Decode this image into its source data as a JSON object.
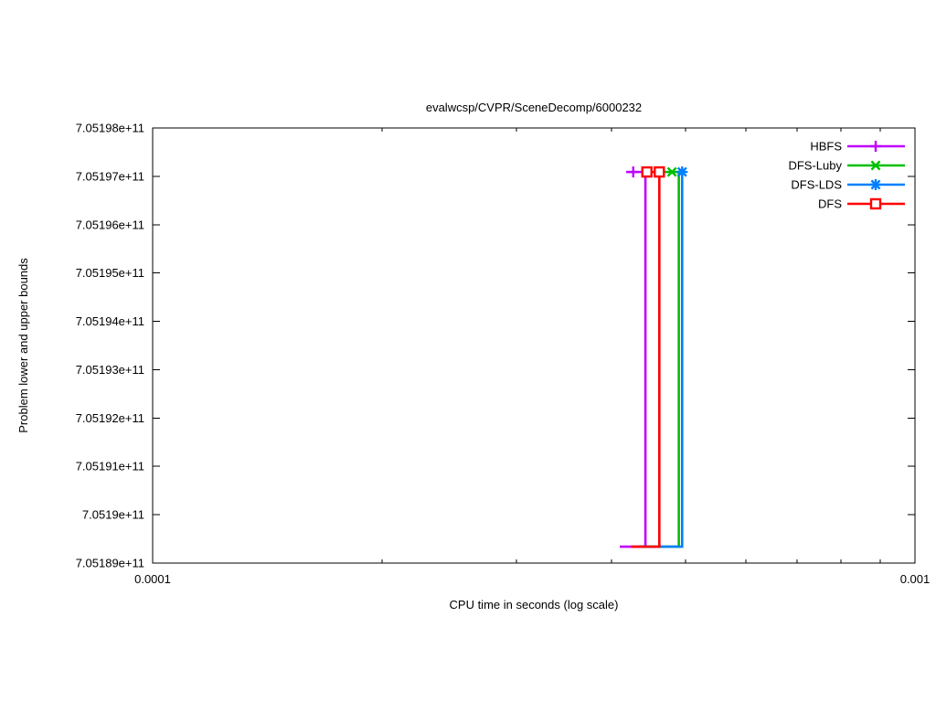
{
  "chart_data": {
    "type": "line",
    "title": "evalwcsp/CVPR/SceneDecomp/6000232",
    "xlabel": "CPU time in seconds (log scale)",
    "ylabel": "Problem lower and upper bounds",
    "x_scale": "log",
    "grid": false,
    "legend_position": "top-right-inside",
    "xlim": [
      0.0001,
      0.001
    ],
    "ylim": [
      705189000000,
      705198000000
    ],
    "x_major_ticks": [
      0.0001,
      0.001
    ],
    "x_major_labels": [
      "0.0001",
      "0.001"
    ],
    "x_minor_ticks": [
      0.0002,
      0.0003,
      0.0004,
      0.0005,
      0.0006,
      0.0007,
      0.0008,
      0.0009
    ],
    "y_ticks": [
      705189000000,
      705190000000,
      705191000000,
      705192000000,
      705193000000,
      705194000000,
      705195000000,
      705196000000,
      705197000000,
      705198000000
    ],
    "y_tick_labels": [
      "7.05189e+11",
      "7.0519e+11",
      "7.05191e+11",
      "7.05192e+11",
      "7.05193e+11",
      "7.05194e+11",
      "7.05195e+11",
      "7.05196e+11",
      "7.05197e+11",
      "7.05198e+11"
    ],
    "lower_bound_value": 705189340000,
    "upper_bound_value": 705197090000,
    "series": [
      {
        "name": "HBFS",
        "color": "#bf00ff",
        "marker": "plus",
        "lower_line": {
          "t_start": 0.00041,
          "t_end": 0.000443,
          "value": 705189340000
        },
        "upper_line": {
          "t_start": 0.000418,
          "t_end": 0.000443,
          "value": 705197090000
        },
        "marker_times": [
          0.000427
        ]
      },
      {
        "name": "DFS-Luby",
        "color": "#00c000",
        "marker": "cross",
        "lower_line": {
          "t_start": 0.000435,
          "t_end": 0.00049,
          "value": 705189340000
        },
        "upper_line": {
          "t_start": 0.00047,
          "t_end": 0.00049,
          "value": 705197090000
        },
        "marker_times": [
          0.00048
        ]
      },
      {
        "name": "DFS-LDS",
        "color": "#0080ff",
        "marker": "asterisk",
        "lower_line": {
          "t_start": 0.000434,
          "t_end": 0.000495,
          "value": 705189340000
        },
        "upper_line": {
          "t_start": 0.000488,
          "t_end": 0.000495,
          "value": 705197090000
        },
        "marker_times": [
          0.000495
        ]
      },
      {
        "name": "DFS",
        "color": "#ff0000",
        "marker": "square-open",
        "lower_line": {
          "t_start": 0.000424,
          "t_end": 0.000462,
          "value": 705189340000
        },
        "upper_line": {
          "t_start": 0.00044,
          "t_end": 0.000462,
          "value": 705197090000
        },
        "marker_times": [
          0.000445,
          0.000462
        ]
      }
    ]
  }
}
